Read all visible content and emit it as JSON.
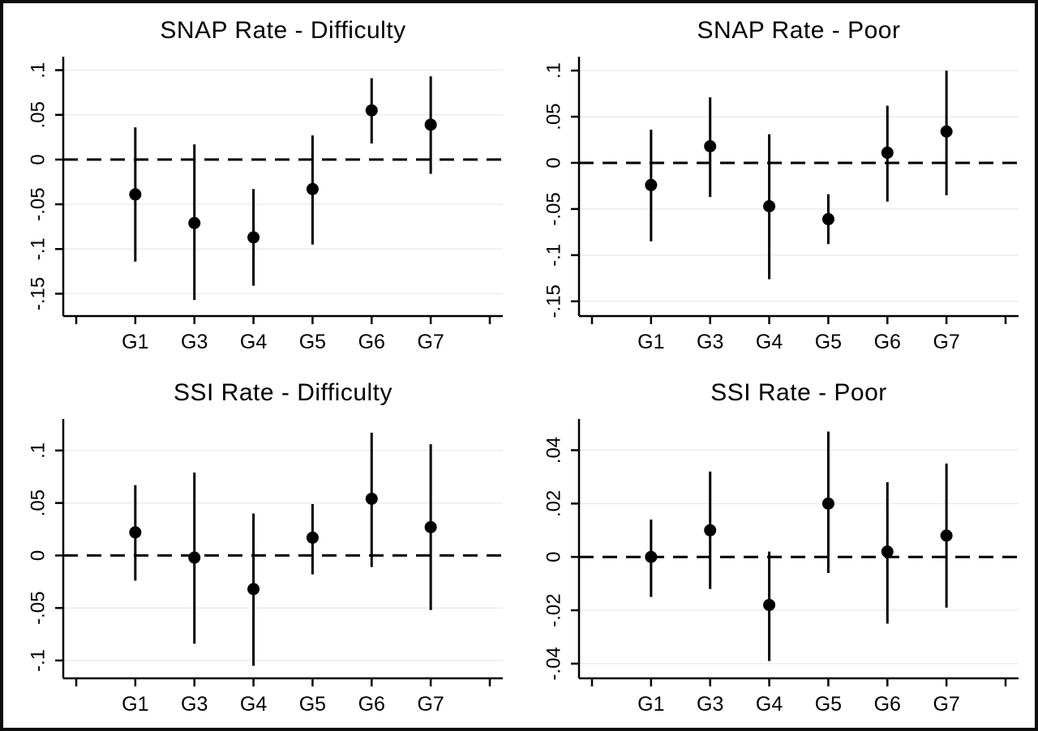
{
  "figure": {
    "background_color": "#ffffff",
    "frame_color": "#0d0d0d",
    "grid_color": "#ececec",
    "axis_color": "#000000",
    "marker_color": "#000000",
    "text_color": "#000000",
    "zero_line_style": "dashed"
  },
  "chart_data": [
    {
      "id": "snap-rate-difficulty",
      "type": "scatter",
      "subtype": "coefficient-plot-with-ci",
      "title": "SNAP Rate - Difficulty",
      "xlabel": "",
      "ylabel": "",
      "legend": "none",
      "grid": true,
      "zero_line": true,
      "categories": [
        "G1",
        "G3",
        "G4",
        "G5",
        "G6",
        "G7"
      ],
      "series": [
        {
          "name": "estimate",
          "values": [
            -0.039,
            -0.071,
            -0.087,
            -0.033,
            0.055,
            0.039
          ]
        },
        {
          "name": "ci_lower",
          "values": [
            -0.114,
            -0.157,
            -0.141,
            -0.095,
            0.018,
            -0.016
          ]
        },
        {
          "name": "ci_upper",
          "values": [
            0.036,
            0.017,
            -0.033,
            0.027,
            0.091,
            0.093
          ]
        }
      ],
      "yticks": [
        0.1,
        0.05,
        0,
        -0.05,
        -0.1,
        -0.15
      ],
      "ytick_labels": [
        ".1",
        ".05",
        "0",
        "-.05",
        "-.1",
        "-.15"
      ],
      "ylim": [
        -0.175,
        0.115
      ]
    },
    {
      "id": "snap-rate-poor",
      "type": "scatter",
      "subtype": "coefficient-plot-with-ci",
      "title": "SNAP Rate - Poor",
      "xlabel": "",
      "ylabel": "",
      "legend": "none",
      "grid": true,
      "zero_line": true,
      "categories": [
        "G1",
        "G3",
        "G4",
        "G5",
        "G6",
        "G7"
      ],
      "series": [
        {
          "name": "estimate",
          "values": [
            -0.024,
            0.018,
            -0.047,
            -0.061,
            0.011,
            0.034
          ]
        },
        {
          "name": "ci_lower",
          "values": [
            -0.085,
            -0.037,
            -0.126,
            -0.088,
            -0.042,
            -0.035
          ]
        },
        {
          "name": "ci_upper",
          "values": [
            0.036,
            0.071,
            0.031,
            -0.034,
            0.062,
            0.1
          ]
        }
      ],
      "yticks": [
        0.1,
        0.05,
        0,
        -0.05,
        -0.1,
        -0.15
      ],
      "ytick_labels": [
        ".1",
        ".05",
        "0",
        "-.05",
        "-.1",
        "-.15"
      ],
      "ylim": [
        -0.166,
        0.115
      ]
    },
    {
      "id": "ssi-rate-difficulty",
      "type": "scatter",
      "subtype": "coefficient-plot-with-ci",
      "title": "SSI Rate - Difficulty",
      "xlabel": "",
      "ylabel": "",
      "legend": "none",
      "grid": true,
      "zero_line": true,
      "categories": [
        "G1",
        "G3",
        "G4",
        "G5",
        "G6",
        "G7"
      ],
      "series": [
        {
          "name": "estimate",
          "values": [
            0.022,
            -0.002,
            -0.032,
            0.017,
            0.054,
            0.027
          ]
        },
        {
          "name": "ci_lower",
          "values": [
            -0.024,
            -0.084,
            -0.105,
            -0.018,
            -0.011,
            -0.052
          ]
        },
        {
          "name": "ci_upper",
          "values": [
            0.067,
            0.079,
            0.04,
            0.049,
            0.117,
            0.106
          ]
        }
      ],
      "yticks": [
        0.1,
        0.05,
        0,
        -0.05,
        -0.1
      ],
      "ytick_labels": [
        ".1",
        ".05",
        "0",
        "-.05",
        "-.1"
      ],
      "ylim": [
        -0.117,
        0.13
      ]
    },
    {
      "id": "ssi-rate-poor",
      "type": "scatter",
      "subtype": "coefficient-plot-with-ci",
      "title": "SSI Rate - Poor",
      "xlabel": "",
      "ylabel": "",
      "legend": "none",
      "grid": true,
      "zero_line": true,
      "categories": [
        "G1",
        "G3",
        "G4",
        "G5",
        "G6",
        "G7"
      ],
      "series": [
        {
          "name": "estimate",
          "values": [
            0.0,
            0.01,
            -0.018,
            0.02,
            0.002,
            0.008
          ]
        },
        {
          "name": "ci_lower",
          "values": [
            -0.015,
            -0.012,
            -0.039,
            -0.006,
            -0.025,
            -0.019
          ]
        },
        {
          "name": "ci_upper",
          "values": [
            0.014,
            0.032,
            0.002,
            0.047,
            0.028,
            0.035
          ]
        }
      ],
      "yticks": [
        0.04,
        0.02,
        0,
        -0.02,
        -0.04
      ],
      "ytick_labels": [
        ".04",
        ".02",
        "0",
        "-.02",
        "-.04"
      ],
      "ylim": [
        -0.0455,
        0.0517
      ]
    }
  ]
}
